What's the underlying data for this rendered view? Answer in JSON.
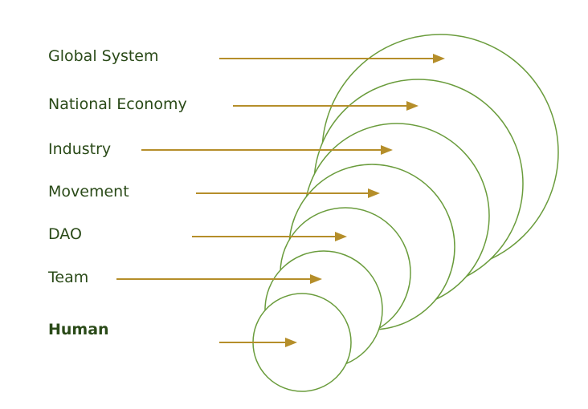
{
  "colors": {
    "text": "#2a4a18",
    "arrow": "#b58e2a",
    "circle": "#6a9c3c"
  },
  "levels": [
    {
      "label": "Global System",
      "bold": false
    },
    {
      "label": "National Economy",
      "bold": false
    },
    {
      "label": "Industry",
      "bold": false
    },
    {
      "label": "Movement",
      "bold": false
    },
    {
      "label": "DAO",
      "bold": false
    },
    {
      "label": "Team",
      "bold": false
    },
    {
      "label": "Human",
      "bold": true
    }
  ]
}
